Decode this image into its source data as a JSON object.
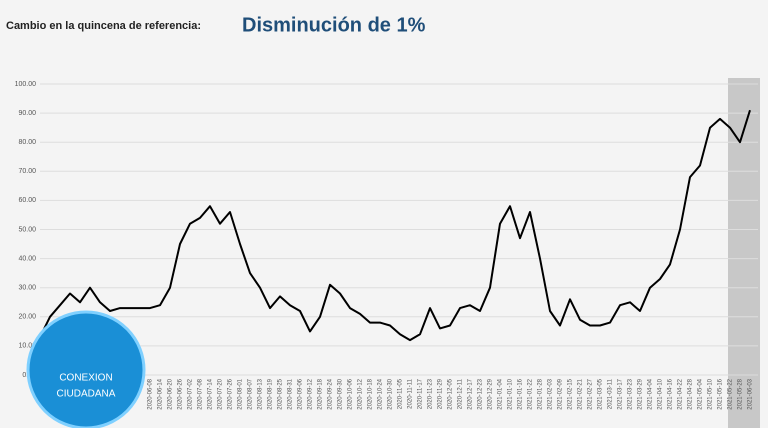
{
  "header": {
    "label": "Cambio en la quincena de referencia:",
    "value": "Disminución de 1%"
  },
  "chart_data": {
    "type": "line",
    "categories": [
      null,
      null,
      null,
      null,
      null,
      null,
      null,
      null,
      null,
      null,
      null,
      "2020-06-08",
      "2020-06-14",
      "2020-06-20",
      "2020-06-26",
      "2020-07-02",
      "2020-07-08",
      "2020-07-14",
      "2020-07-20",
      "2020-07-26",
      "2020-08-01",
      "2020-08-07",
      "2020-08-13",
      "2020-08-19",
      "2020-08-25",
      "2020-08-31",
      "2020-09-06",
      "2020-09-12",
      "2020-09-18",
      "2020-09-24",
      "2020-09-30",
      "2020-10-06",
      "2020-10-12",
      "2020-10-18",
      "2020-10-24",
      "2020-10-30",
      "2020-11-05",
      "2020-11-11",
      "2020-11-17",
      "2020-11-23",
      "2020-11-29",
      "2020-12-05",
      "2020-12-11",
      "2020-12-17",
      "2020-12-23",
      "2020-12-29",
      "2021-01-04",
      "2021-01-10",
      "2021-01-16",
      "2021-01-22",
      "2021-01-28",
      "2021-02-03",
      "2021-02-09",
      "2021-02-15",
      "2021-02-21",
      "2021-02-27",
      "2021-03-05",
      "2021-03-11",
      "2021-03-17",
      "2021-03-23",
      "2021-03-29",
      "2021-04-04",
      "2021-04-10",
      "2021-04-16",
      "2021-04-22",
      "2021-04-28",
      "2021-05-04",
      "2021-05-10",
      "2021-05-16",
      "2021-05-22",
      "2021-05-28",
      "2021-06-03"
    ],
    "values": [
      13,
      20,
      24,
      28,
      25,
      30,
      25,
      22,
      23,
      23,
      23,
      23,
      24,
      30,
      45,
      52,
      54,
      58,
      52,
      56,
      45,
      35,
      30,
      23,
      27,
      24,
      22,
      15,
      20,
      31,
      28,
      23,
      21,
      18,
      18,
      17,
      14,
      12,
      14,
      23,
      16,
      17,
      23,
      24,
      22,
      30,
      52,
      58,
      47,
      56,
      40,
      22,
      17,
      26,
      19,
      17,
      17,
      18,
      24,
      25,
      22,
      30,
      33,
      38,
      50,
      68,
      72,
      85,
      88,
      85,
      80,
      91
    ],
    "color": "#000000",
    "ylim": [
      0,
      100
    ],
    "yticks": [
      {
        "value": 0,
        "label": "0.00"
      },
      {
        "value": 10,
        "label": "10.00"
      },
      {
        "value": 20,
        "label": "20.00"
      },
      {
        "value": 30,
        "label": "30.00"
      },
      {
        "value": 40,
        "label": "40.00"
      },
      {
        "value": 50,
        "label": "50.00"
      },
      {
        "value": 60,
        "label": "60.00"
      },
      {
        "value": 70,
        "label": "70.00"
      },
      {
        "value": 80,
        "label": "80.00"
      },
      {
        "value": 90,
        "label": "90.00"
      },
      {
        "value": 100,
        "label": "100.00"
      }
    ],
    "grid": true
  },
  "watermark": {
    "line1": "CONEXION",
    "line2": "CIUDADANA"
  }
}
